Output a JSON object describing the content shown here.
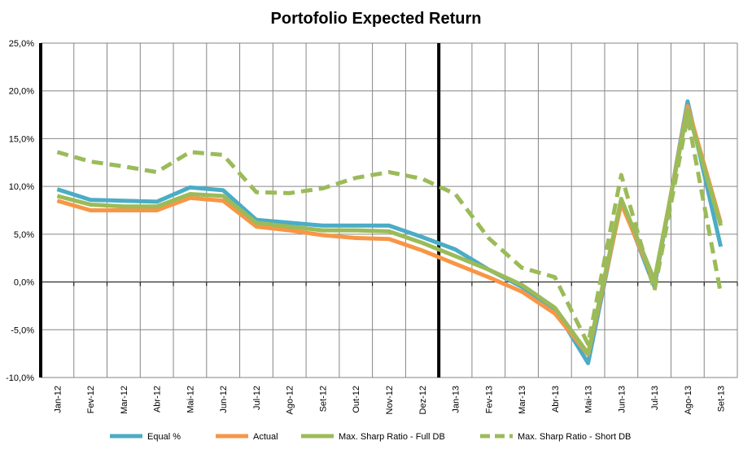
{
  "chart_data": {
    "type": "line",
    "title": "Portofolio Expected Return",
    "xlabel": "",
    "ylabel": "",
    "ylim": [
      -10,
      25
    ],
    "yticks": [
      "-10,0%",
      "-5,0%",
      "0,0%",
      "5,0%",
      "10,0%",
      "15,0%",
      "20,0%",
      "25,0%"
    ],
    "ytick_values": [
      -10,
      -5,
      0,
      5,
      10,
      15,
      20,
      25
    ],
    "grid": true,
    "legend_position": "bottom",
    "categories": [
      "Jan-12",
      "Fev-12",
      "Mar-12",
      "Abr-12",
      "Mai-12",
      "Jun-12",
      "Jul-12",
      "Ago-12",
      "Set-12",
      "Out-12",
      "Nov-12",
      "Dez-12",
      "Jan-13",
      "Fev-13",
      "Mar-13",
      "Abr-13",
      "Mai-13",
      "Jun-13",
      "Jul-13",
      "Ago-13",
      "Set-13"
    ],
    "series": [
      {
        "name": "Equal %",
        "color": "#4bacc6",
        "dashed": false,
        "values": [
          9.7,
          8.6,
          8.5,
          8.4,
          9.9,
          9.6,
          6.5,
          6.2,
          5.9,
          5.9,
          5.9,
          4.7,
          3.4,
          1.3,
          -0.5,
          -2.8,
          -8.5,
          8.5,
          -0.5,
          18.9,
          3.7
        ]
      },
      {
        "name": "Actual",
        "color": "#f79646",
        "dashed": false,
        "values": [
          8.5,
          7.5,
          7.5,
          7.5,
          8.8,
          8.5,
          5.8,
          5.4,
          4.9,
          4.6,
          4.5,
          3.3,
          1.9,
          0.5,
          -1.0,
          -3.3,
          -7.6,
          8.2,
          0.0,
          18.4,
          6.2
        ]
      },
      {
        "name": "Max. Sharp Ratio - Full DB",
        "color": "#9bbb59",
        "dashed": false,
        "values": [
          9.0,
          8.1,
          7.9,
          7.9,
          9.2,
          9.0,
          6.2,
          5.8,
          5.4,
          5.4,
          5.3,
          4.1,
          2.7,
          1.3,
          -0.3,
          -2.7,
          -7.5,
          8.7,
          0.2,
          18.0,
          5.9
        ]
      },
      {
        "name": "Max. Sharp Ratio - Short DB",
        "color": "#9bbb59",
        "dashed": true,
        "values": [
          13.6,
          12.6,
          12.1,
          11.5,
          13.6,
          13.3,
          9.4,
          9.3,
          9.8,
          10.9,
          11.5,
          10.8,
          9.2,
          4.6,
          1.5,
          0.5,
          -6.5,
          11.2,
          -0.9,
          17.3,
          -1.2
        ]
      }
    ]
  }
}
